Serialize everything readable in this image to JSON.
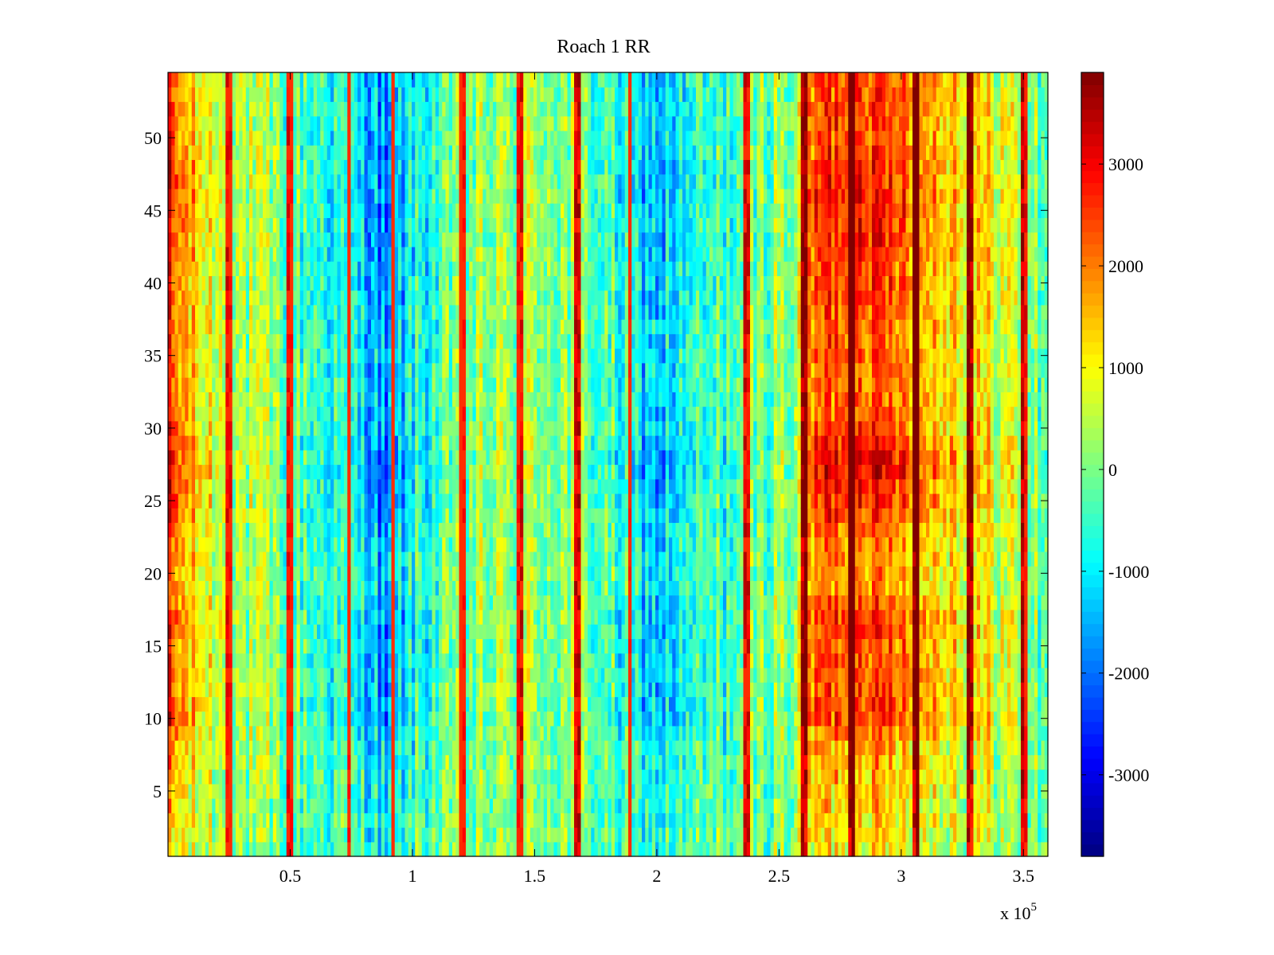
{
  "chart_data": {
    "type": "heatmap",
    "title": "Roach 1 RR",
    "xlabel": "",
    "ylabel": "",
    "x_multiplier": {
      "base": "x 10",
      "exponent": "5"
    },
    "xlim": [
      0,
      3.6
    ],
    "ylim": [
      0.5,
      54.5
    ],
    "x_ticks": [
      {
        "value": 0.5,
        "label": "0.5"
      },
      {
        "value": 1,
        "label": "1"
      },
      {
        "value": 1.5,
        "label": "1.5"
      },
      {
        "value": 2,
        "label": "2"
      },
      {
        "value": 2.5,
        "label": "2.5"
      },
      {
        "value": 3,
        "label": "3"
      },
      {
        "value": 3.5,
        "label": "3.5"
      }
    ],
    "y_ticks": [
      {
        "value": 5,
        "label": "5"
      },
      {
        "value": 10,
        "label": "10"
      },
      {
        "value": 15,
        "label": "15"
      },
      {
        "value": 20,
        "label": "20"
      },
      {
        "value": 25,
        "label": "25"
      },
      {
        "value": 30,
        "label": "30"
      },
      {
        "value": 35,
        "label": "35"
      },
      {
        "value": 40,
        "label": "40"
      },
      {
        "value": 45,
        "label": "45"
      },
      {
        "value": 50,
        "label": "50"
      }
    ],
    "colormap": "jet",
    "clim": [
      -3800,
      3900
    ],
    "colorbar_ticks": [
      {
        "value": 3000,
        "label": "3000"
      },
      {
        "value": 2000,
        "label": "2000"
      },
      {
        "value": 1000,
        "label": "1000"
      },
      {
        "value": 0,
        "label": "0"
      },
      {
        "value": -1000,
        "label": "-1000"
      },
      {
        "value": -2000,
        "label": "-2000"
      },
      {
        "value": -3000,
        "label": "-3000"
      }
    ],
    "rows": 54,
    "column_profile": {
      "x": [
        0,
        0.05,
        0.1,
        0.2,
        0.3,
        0.4,
        0.5,
        0.6,
        0.7,
        0.8,
        0.85,
        0.9,
        0.95,
        1.0,
        1.1,
        1.2,
        1.3,
        1.4,
        1.5,
        1.6,
        1.7,
        1.8,
        1.9,
        2.0,
        2.1,
        2.2,
        2.3,
        2.4,
        2.5,
        2.58,
        2.62,
        2.7,
        2.8,
        2.84,
        2.9,
        3.0,
        3.1,
        3.2,
        3.3,
        3.4,
        3.5,
        3.6
      ],
      "values": [
        2700,
        1900,
        1300,
        800,
        400,
        100,
        -150,
        -500,
        -700,
        -1100,
        -1500,
        -2100,
        -1500,
        -900,
        -550,
        -250,
        100,
        200,
        300,
        200,
        0,
        -500,
        -1000,
        -1350,
        -1100,
        -700,
        -400,
        -100,
        200,
        300,
        2000,
        2500,
        2700,
        3100,
        2300,
        2500,
        1800,
        1600,
        1200,
        900,
        500,
        -500
      ]
    },
    "row_profile": {
      "y": [
        1,
        5,
        8,
        10,
        12,
        15,
        17,
        19,
        22,
        25,
        27,
        28,
        30,
        33,
        36,
        40,
        43,
        46,
        50,
        54
      ],
      "values": [
        0.45,
        0.6,
        0.7,
        1.0,
        0.95,
        0.95,
        1.0,
        0.75,
        0.8,
        1.05,
        1.2,
        1.2,
        0.95,
        0.9,
        0.9,
        1.0,
        1.05,
        1.1,
        1.0,
        0.95
      ]
    },
    "vertical_streaks": [
      0.25,
      0.5,
      0.74,
      0.92,
      1.2,
      1.44,
      1.68,
      1.89,
      2.37,
      2.6,
      2.8,
      3.06,
      3.28,
      3.5
    ]
  }
}
